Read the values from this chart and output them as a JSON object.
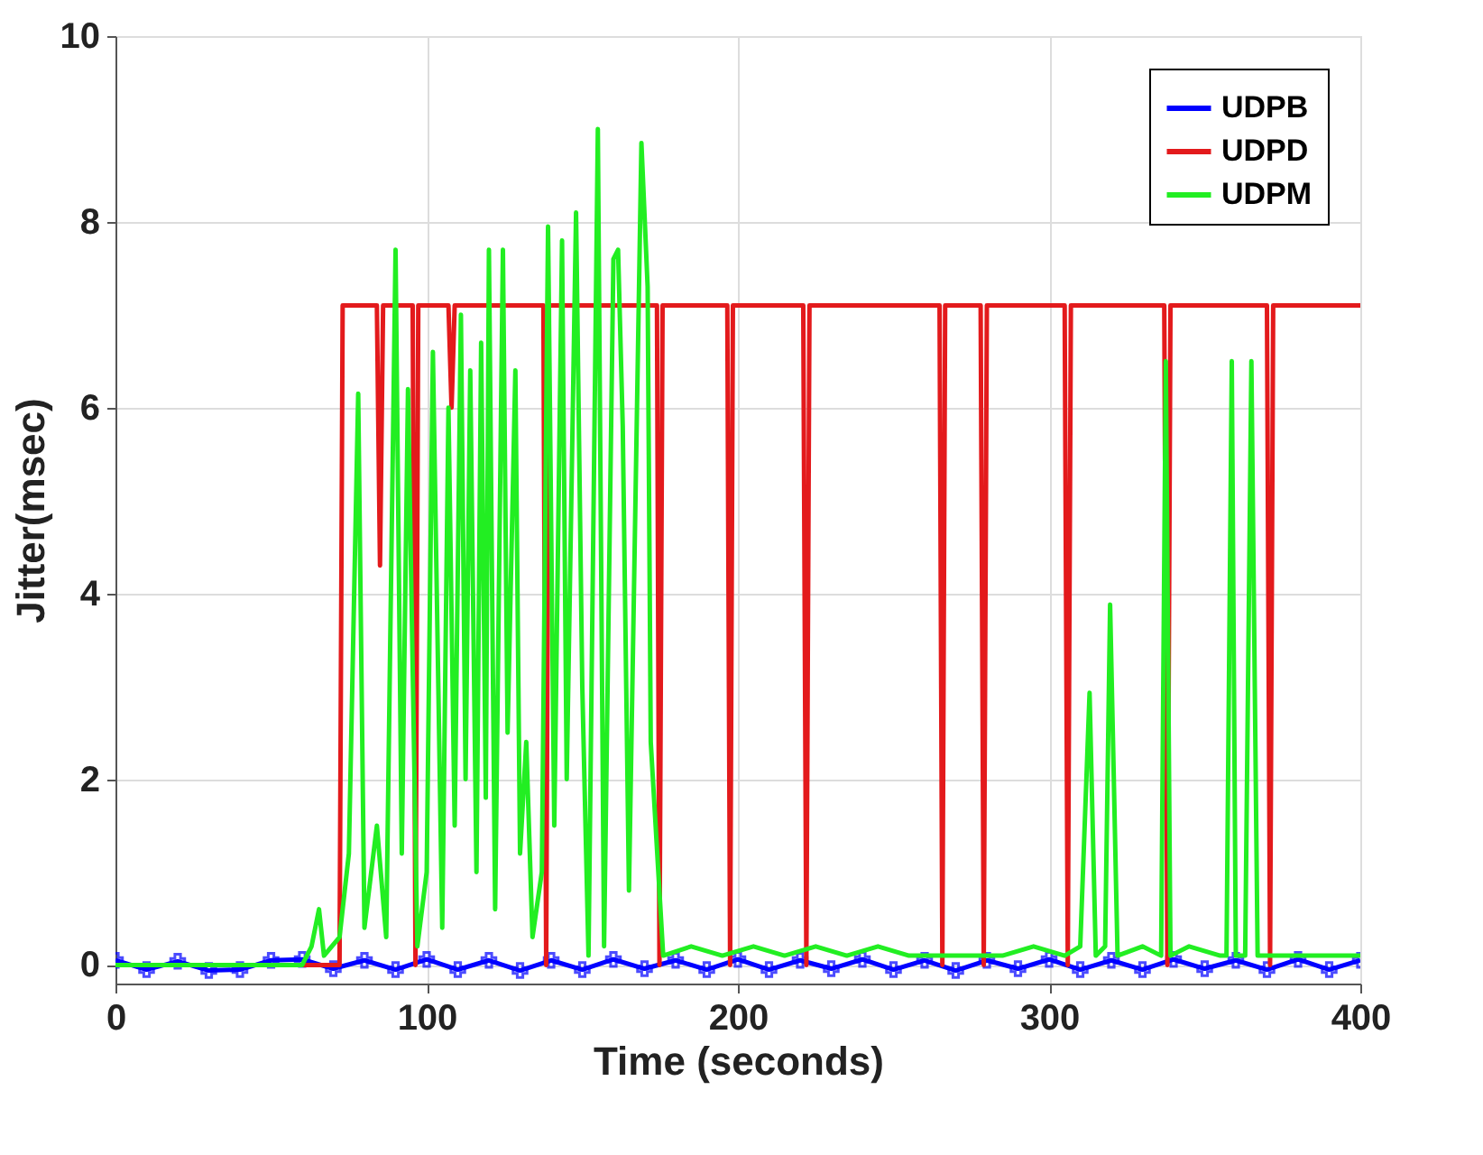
{
  "chart_data": {
    "type": "line",
    "xlabel": "Time (seconds)",
    "ylabel": "Jitter(msec)",
    "xlim": [
      0,
      400
    ],
    "ylim": [
      -0.2,
      10
    ],
    "xticks": [
      0,
      100,
      200,
      300,
      400
    ],
    "yticks": [
      0,
      2,
      4,
      6,
      8,
      10
    ],
    "grid": true,
    "legend": "top right",
    "line_style": "solid",
    "series": [
      {
        "name": "UDPB",
        "color": "#0000ff",
        "marker": "cross",
        "x": [
          0,
          10,
          20,
          30,
          40,
          50,
          60,
          70,
          80,
          90,
          100,
          110,
          120,
          130,
          140,
          150,
          160,
          170,
          180,
          190,
          200,
          210,
          220,
          230,
          240,
          250,
          260,
          270,
          280,
          290,
          300,
          310,
          320,
          330,
          340,
          350,
          360,
          370,
          380,
          390,
          400
        ],
        "values": [
          0.05,
          -0.05,
          0.04,
          -0.06,
          -0.05,
          0.05,
          0.06,
          -0.04,
          0.05,
          -0.05,
          0.06,
          -0.05,
          0.05,
          -0.06,
          0.05,
          -0.05,
          0.06,
          -0.04,
          0.05,
          -0.05,
          0.06,
          -0.05,
          0.05,
          -0.04,
          0.06,
          -0.05,
          0.05,
          -0.06,
          0.05,
          -0.04,
          0.06,
          -0.05,
          0.05,
          -0.05,
          0.06,
          -0.04,
          0.05,
          -0.05,
          0.06,
          -0.05,
          0.05
        ]
      },
      {
        "name": "UDPD",
        "color": "#e31a1c",
        "marker": "none",
        "x": [
          0,
          72,
          73,
          84,
          85,
          86,
          95.5,
          96.4,
          97.3,
          107,
          108,
          109,
          137.5,
          138.4,
          139.3,
          174,
          174.8,
          175.8,
          196.6,
          197.5,
          198.4,
          221,
          222,
          223,
          264.8,
          265.7,
          266.6,
          278,
          279,
          280,
          305,
          306,
          307,
          337,
          338,
          339,
          370,
          371,
          372,
          400
        ],
        "values": [
          0,
          0,
          7.1,
          7.1,
          4.3,
          7.1,
          7.1,
          0,
          7.1,
          7.1,
          6.0,
          7.1,
          7.1,
          0,
          7.1,
          7.1,
          0,
          7.1,
          7.1,
          0,
          7.1,
          7.1,
          0,
          7.1,
          7.1,
          0,
          7.1,
          7.1,
          0,
          7.1,
          7.1,
          0,
          7.1,
          7.1,
          0,
          7.1,
          7.1,
          0,
          7.1,
          7.1
        ]
      },
      {
        "name": "UDPM",
        "color": "#22ee22",
        "marker": "none",
        "x": [
          0,
          60,
          63,
          65.4,
          67,
          72,
          75,
          78,
          80,
          84,
          87,
          90,
          92,
          94,
          97,
          100,
          102,
          105,
          107,
          109,
          111,
          112.5,
          114,
          116,
          117.5,
          119,
          120,
          122,
          124.5,
          126,
          128.5,
          130,
          132,
          134,
          137,
          139,
          141,
          143.5,
          145,
          148,
          150,
          152,
          155,
          157,
          160,
          161.5,
          163,
          165,
          169,
          171,
          172,
          176,
          185,
          195,
          205,
          215,
          225,
          235,
          245,
          255,
          265,
          275,
          285,
          295,
          305,
          310,
          313,
          315,
          318,
          319.6,
          322,
          330,
          336,
          337.5,
          339,
          345,
          355,
          357,
          358.7,
          360,
          363,
          365,
          367,
          372,
          400
        ],
        "values": [
          0,
          0,
          0.2,
          0.6,
          0.1,
          0.3,
          1.2,
          6.15,
          0.4,
          1.5,
          0.3,
          7.7,
          1.2,
          6.2,
          0.2,
          1.0,
          6.6,
          0.4,
          6.0,
          1.5,
          7.0,
          2.0,
          6.4,
          1.0,
          6.7,
          1.8,
          7.7,
          0.6,
          7.7,
          2.5,
          6.4,
          1.2,
          2.4,
          0.3,
          1.0,
          7.95,
          1.5,
          7.8,
          2.0,
          8.1,
          3.0,
          0.1,
          9.0,
          0.2,
          7.6,
          7.7,
          5.8,
          0.8,
          8.85,
          7.3,
          2.4,
          0.1,
          0.2,
          0.1,
          0.2,
          0.1,
          0.2,
          0.1,
          0.2,
          0.1,
          0.1,
          0.1,
          0.1,
          0.2,
          0.1,
          0.2,
          2.93,
          0.1,
          0.2,
          3.88,
          0.1,
          0.2,
          0.1,
          6.5,
          0.1,
          0.2,
          0.1,
          0.1,
          6.5,
          0.1,
          0.1,
          6.5,
          0.1,
          0.1,
          0.1
        ]
      }
    ]
  }
}
